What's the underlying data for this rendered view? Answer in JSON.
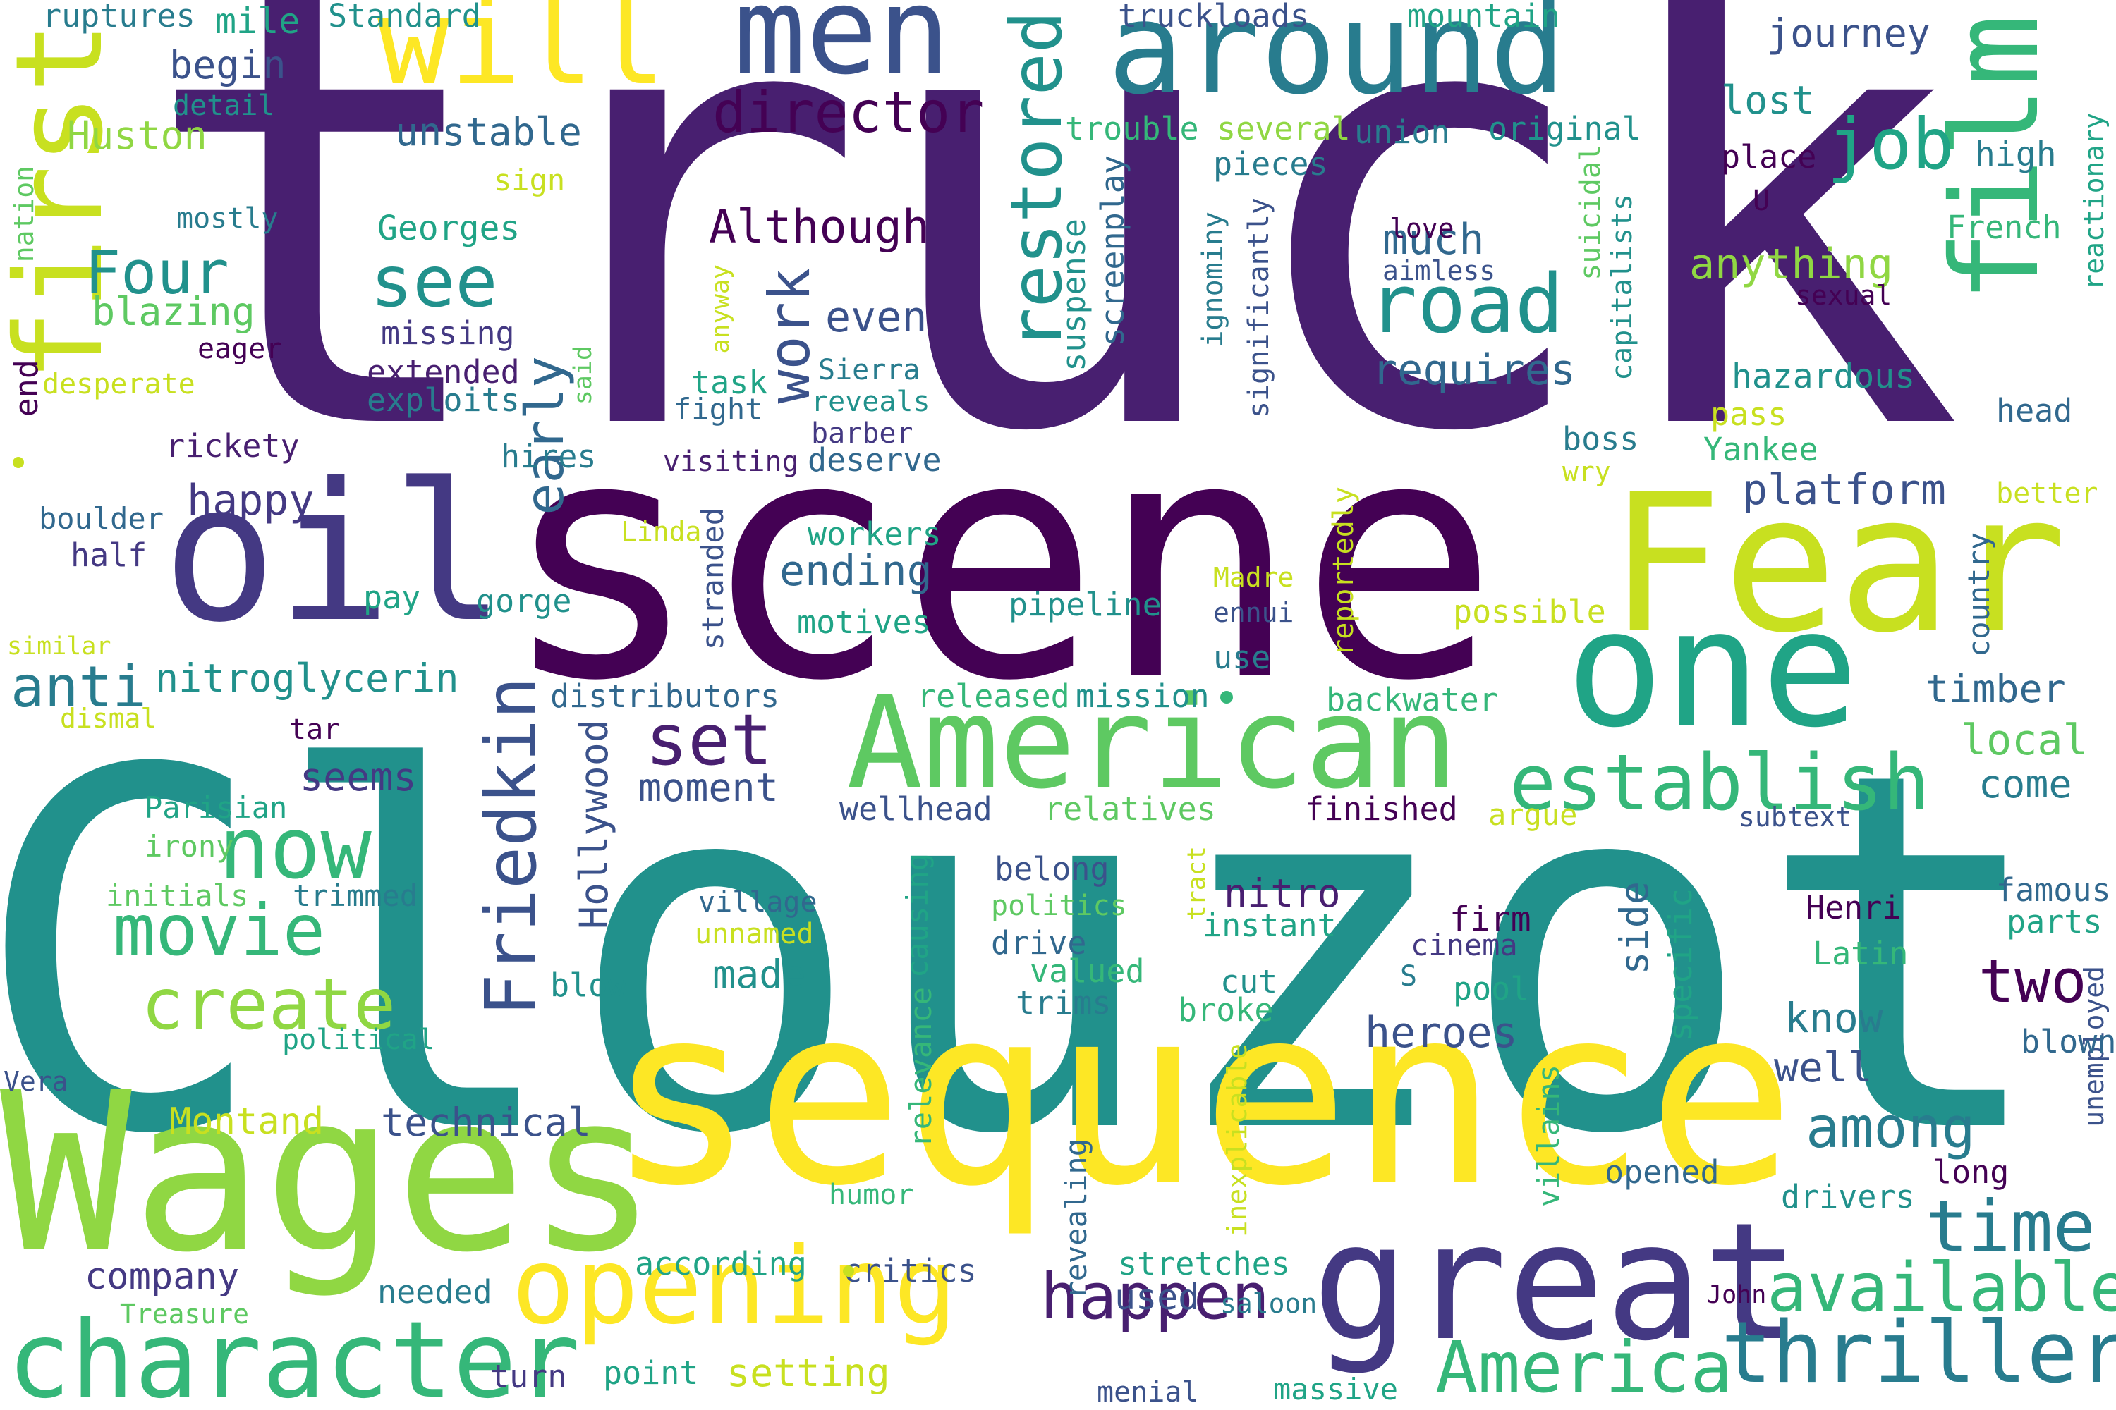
{
  "words": {
    "truck": "truck",
    "clouzot": "Clouzot",
    "scene": "scene",
    "sequence": "sequence",
    "wages": "Wages",
    "fear": "Fear",
    "oil": "oil",
    "first": "first",
    "film": "film",
    "men": "men",
    "around": "around",
    "will": "will",
    "one": "one",
    "american": "American",
    "great": "great",
    "opening": "opening",
    "character": "character",
    "thriller": "thriller",
    "america": "America",
    "establish": "establish",
    "available": "available",
    "time": "time",
    "road": "road",
    "restored": "restored",
    "job": "job",
    "director": "director",
    "see": "see",
    "four": "Four",
    "now": "now",
    "movie": "movie",
    "create": "create",
    "friedkin": "Friedkin",
    "set": "set",
    "happen": "happen",
    "two": "two",
    "among": "among",
    "work": "work",
    "early": "early",
    "anti": "anti",
    "nitroglycerin": "nitroglycerin",
    "blazing": "blazing",
    "huston": "Huston",
    "unstable": "unstable",
    "begin": "begin",
    "mile": "mile",
    "standard": "Standard",
    "ruptures": "ruptures",
    "detail": "detail",
    "mostly": "mostly",
    "georges": "Georges",
    "although": "Although",
    "even": "even",
    "much": "much",
    "requires": "requires",
    "truckloads": "truckloads",
    "mountain": "mountain",
    "journey": "journey",
    "lost": "lost",
    "trouble": "trouble",
    "several": "several",
    "union": "union",
    "original": "original",
    "pieces": "pieces",
    "place": "place",
    "high": "high",
    "love": "love",
    "aimless": "aimless",
    "u": "U",
    "french": "French",
    "anything": "anything",
    "sexual": "sexual",
    "hazardous": "hazardous",
    "head": "head",
    "pass": "pass",
    "yankee": "Yankee",
    "boss": "boss",
    "wry": "wry",
    "better": "better",
    "platform": "platform",
    "nation": "nation",
    "sign": "sign",
    "eager": "eager",
    "missing": "missing",
    "extended": "extended",
    "exploits": "exploits",
    "desperate": "desperate",
    "end": "end",
    "rickety": "rickety",
    "hires": "hires",
    "happy": "happy",
    "boulder": "boulder",
    "half": "half",
    "pay": "pay",
    "gorge": "gorge",
    "similar": "similar",
    "dismal": "dismal",
    "tar": "tar",
    "parisian": "Parisian",
    "irony": "irony",
    "initials": "initials",
    "trimmed": "trimmed",
    "blow": "blow",
    "political": "political",
    "vera": "Vera",
    "montand": "Montand",
    "technical": "technical",
    "company": "company",
    "treasure": "Treasure",
    "needed": "needed",
    "turn": "turn",
    "point": "point",
    "setting": "setting",
    "menial": "menial",
    "massive": "massive",
    "hollywood": "Hollywood",
    "seems": "seems",
    "moment": "moment",
    "distributors": "distributors",
    "released": "released",
    "mission": "mission",
    "backwater": "backwater",
    "local": "local",
    "come": "come",
    "timber": "timber",
    "country": "country",
    "possible": "possible",
    "task": "task",
    "fight": "fight",
    "visiting": "visiting",
    "sierra": "Sierra",
    "reveals": "reveals",
    "barber": "barber",
    "deserve": "deserve",
    "workers": "workers",
    "ending": "ending",
    "motives": "motives",
    "pipeline": "pipeline",
    "madre": "Madre",
    "ennui": "ennui",
    "use": "use",
    "linda": "Linda",
    "stranded": "stranded",
    "anyway": "anyway",
    "said": "said",
    "suspense": "suspense",
    "screenplay": "screenplay",
    "ignominy": "ignominy",
    "significantly": "significantly",
    "suicidal": "suicidal",
    "capitalists": "capitalists",
    "reportedly": "reportedly",
    "reactionary": "reactionary",
    "wellhead": "wellhead",
    "relatives": "relatives",
    "finished": "finished",
    "argue": "argue",
    "subtext": "subtext",
    "village": "village",
    "unnamed": "unnamed",
    "made": "made",
    "causing": "causing",
    "relevance": "relevance",
    "belong": "belong",
    "politics": "politics",
    "drive": "drive",
    "valued": "valued",
    "trims": "trims",
    "tract": "tract",
    "nitro": "nitro",
    "instant": "instant",
    "cut": "cut",
    "broke": "broke",
    "firm": "firm",
    "cinema": "cinema",
    "s": "S",
    "pool": "pool",
    "side": "side",
    "specific": "specific",
    "henri": "Henri",
    "latin": "Latin",
    "famous": "famous",
    "parts": "parts",
    "unemployed": "unemployed",
    "blown": "blown",
    "know": "know",
    "well": "well",
    "heroes": "heroes",
    "villains": "villains",
    "inexplicable": "inexplicable",
    "revealing": "revealing",
    "humor": "humor",
    "opened": "opened",
    "drivers": "drivers",
    "long": "long",
    "according": "according",
    "critics": "critics",
    "stretches": "stretches",
    "used": "used",
    "saloon": "saloon",
    "john": "John"
  },
  "colors": {
    "dark_purple": "#440154",
    "purple": "#481f70",
    "indigo": "#443983",
    "blue": "#3b528b",
    "steel": "#31688e",
    "teal_blue": "#287c8e",
    "teal": "#21918c",
    "sea_green": "#20a486",
    "green": "#35b779",
    "light_green": "#5ec962",
    "lime": "#90d743",
    "yellow_green": "#c8e020",
    "yellow": "#fde725"
  }
}
